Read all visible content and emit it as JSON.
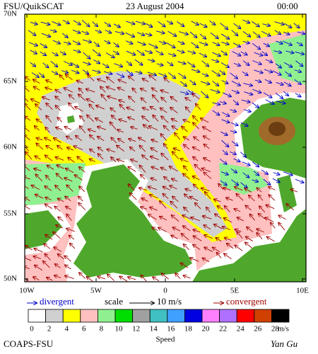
{
  "header": {
    "title": "FSU/QuikSCAT",
    "date": "23 August 2004",
    "time": "00:00"
  },
  "map": {
    "lat_labels": [
      "70N",
      "65N",
      "60N",
      "55N",
      "50N"
    ],
    "lon_labels": [
      "10W",
      "5W",
      "0",
      "5E",
      "10E"
    ]
  },
  "legend": {
    "divergent": "divergent",
    "scale": "scale",
    "scale_value": "10 m/s",
    "convergent": "convergent"
  },
  "colorbar": {
    "labels": [
      0,
      2,
      4,
      6,
      8,
      10,
      12,
      14,
      16,
      18,
      20,
      22,
      24,
      26,
      28
    ],
    "colors": [
      "#ffffff",
      "#d0d0d0",
      "#ffff00",
      "#ffc0c0",
      "#90f090",
      "#00dd00",
      "#a0a0a0",
      "#40c0c0",
      "#40a0ff",
      "#0000e0",
      "#ff80ff",
      "#b070ff",
      "#ff0000",
      "#d04000",
      "#000000"
    ],
    "unit": "m/s",
    "title": "Speed"
  },
  "footer": {
    "left": "COAPS-FSU",
    "right": "Yan Gu"
  }
}
